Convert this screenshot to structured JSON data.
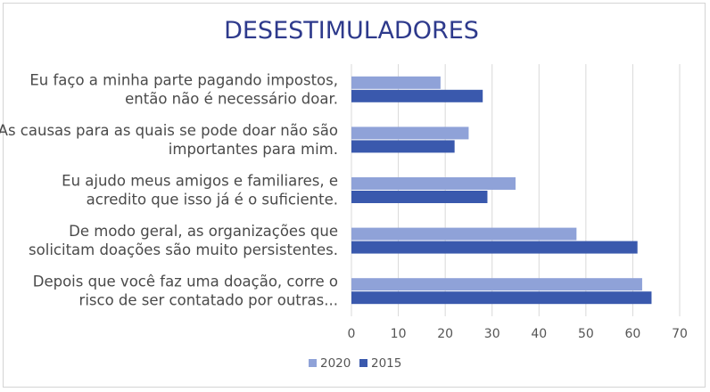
{
  "chart_data": {
    "type": "bar",
    "orientation": "horizontal",
    "title": "DESESTIMULADORES",
    "categories": [
      [
        "Eu faço a minha parte pagando impostos,",
        "então não é necessário doar."
      ],
      [
        "As causas para as quais se pode doar não são",
        "importantes para mim."
      ],
      [
        "Eu ajudo meus amigos e familiares, e",
        "acredito que isso já é o suficiente."
      ],
      [
        "De modo geral, as organizações que",
        "solicitam doações são muito persistentes."
      ],
      [
        "Depois que você faz uma doação, corre o",
        "risco de ser contatado por outras..."
      ]
    ],
    "series": [
      {
        "name": "2020",
        "color": "#8fa2d8",
        "values": [
          19,
          25,
          35,
          48,
          62
        ]
      },
      {
        "name": "2015",
        "color": "#3a59ad",
        "values": [
          28,
          22,
          29,
          61,
          64
        ]
      }
    ],
    "xlim": [
      0,
      70
    ],
    "xticks": [
      0,
      10,
      20,
      30,
      40,
      50,
      60,
      70
    ],
    "grid": true,
    "legend_position": "bottom"
  }
}
